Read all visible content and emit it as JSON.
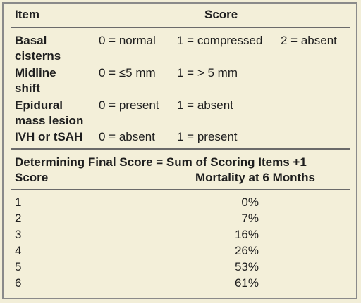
{
  "header": {
    "item": "Item",
    "score": "Score"
  },
  "rows": [
    {
      "item_line1": "Basal",
      "item_line2": "cisterns",
      "opts": [
        "0 = normal",
        "1 = compressed",
        "2 = absent"
      ]
    },
    {
      "item_line1": "Midline",
      "item_line2": "shift",
      "opts": [
        "0 = ≤5 mm",
        "1 = > 5 mm"
      ]
    },
    {
      "item_line1": "Epidural",
      "item_line2": "mass lesion",
      "opts": [
        "0 = present",
        "1 = absent"
      ]
    },
    {
      "item_line1": "IVH or tSAH",
      "opts": [
        "0 = absent",
        "1 = present"
      ]
    }
  ],
  "final_score": "Determining Final Score = Sum of Scoring Items +1",
  "mortality_header": {
    "score": "Score",
    "mortality": "Mortality at 6 Months"
  },
  "mortality": [
    {
      "score": "1",
      "pct": "0%"
    },
    {
      "score": "2",
      "pct": "7%"
    },
    {
      "score": "3",
      "pct": "16%"
    },
    {
      "score": "4",
      "pct": "26%"
    },
    {
      "score": "5",
      "pct": "53%"
    },
    {
      "score": "6",
      "pct": "61%"
    }
  ]
}
